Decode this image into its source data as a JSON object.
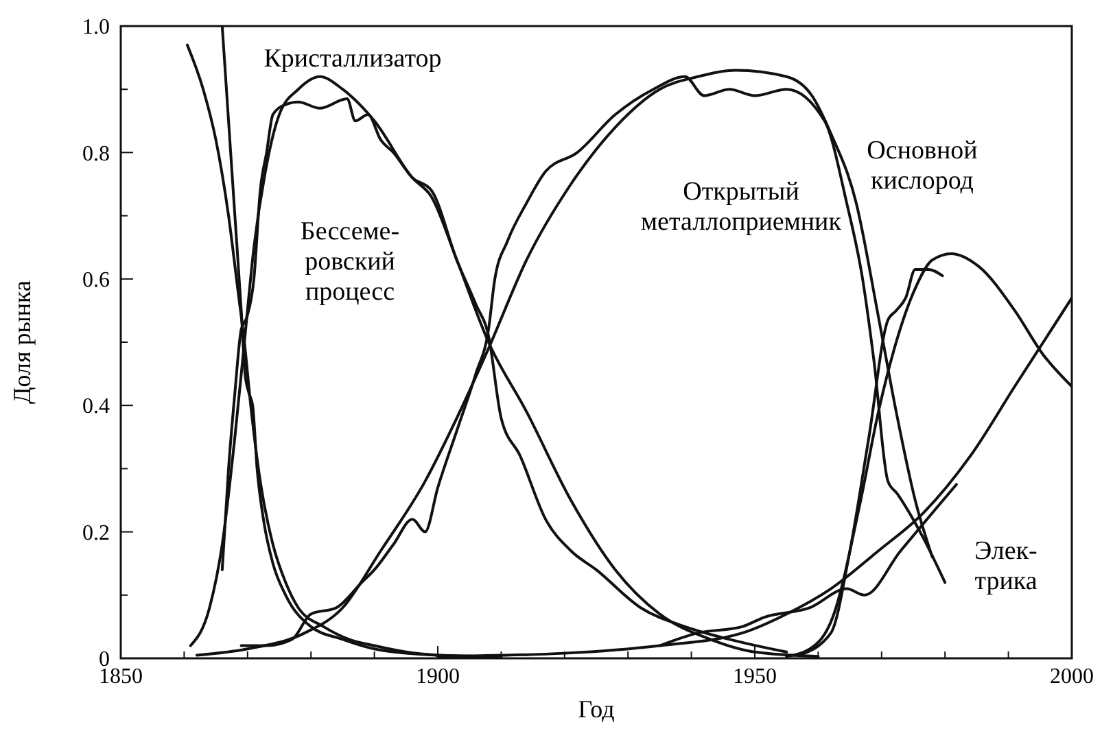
{
  "chart_data": {
    "type": "line",
    "xlabel": "Год",
    "ylabel": "Доля рынка",
    "xlim": [
      1850,
      2000
    ],
    "xticks": [
      1850,
      {
        "value": 1860,
        "label": null
      },
      {
        "value": 1870,
        "label": null
      },
      {
        "value": 1880,
        "label": null
      },
      {
        "value": 1890,
        "label": null
      },
      1900,
      {
        "value": 1910,
        "label": null
      },
      {
        "value": 1920,
        "label": null
      },
      {
        "value": 1930,
        "label": null
      },
      {
        "value": 1940,
        "label": null
      },
      1950,
      {
        "value": 1960,
        "label": null
      },
      {
        "value": 1970,
        "label": null
      },
      {
        "value": 1980,
        "label": null
      },
      {
        "value": 1990,
        "label": null
      },
      2000
    ],
    "ylim": [
      0,
      1
    ],
    "yticks": [
      0,
      {
        "value": 0.1,
        "label": null
      },
      0.2,
      {
        "value": 0.3,
        "label": null
      },
      0.4,
      {
        "value": 0.5,
        "label": null
      },
      0.6,
      {
        "value": 0.7,
        "label": null
      },
      0.8,
      {
        "value": 0.9,
        "label": null
      },
      {
        "value": 1,
        "label": "1.0"
      }
    ],
    "grid": false,
    "marker": "none",
    "line_style": "solid",
    "series": [
      {
        "color": "#111111",
        "x": [
          1866,
          1867,
          1868,
          1869,
          1869.6,
          1870.2,
          1870.8,
          1871.5,
          1872.5,
          1874,
          1876,
          1880,
          1885,
          1890,
          1900,
          1910
        ],
        "values": [
          1.0,
          0.85,
          0.7,
          0.55,
          0.45,
          0.42,
          0.4,
          0.3,
          0.22,
          0.15,
          0.1,
          0.05,
          0.03,
          0.015,
          0.005,
          0.003
        ]
      },
      {
        "color": "#111111",
        "x": [
          1860.5,
          1863,
          1865,
          1867,
          1868.5,
          1869.5,
          1870.5,
          1872,
          1874,
          1876,
          1878,
          1882,
          1886,
          1890,
          1895,
          1900,
          1910
        ],
        "values": [
          0.97,
          0.9,
          0.82,
          0.7,
          0.58,
          0.5,
          0.4,
          0.28,
          0.18,
          0.12,
          0.08,
          0.05,
          0.03,
          0.02,
          0.01,
          0.005,
          0.002
        ]
      },
      {
        "color": "#111111",
        "x": [
          1861,
          1864,
          1866,
          1868,
          1869.5,
          1871,
          1873,
          1875,
          1878,
          1881.4,
          1885,
          1890,
          1896,
          1899,
          1903,
          1908,
          1914,
          1921,
          1928,
          1935,
          1943,
          1950,
          1960
        ],
        "values": [
          0.02,
          0.08,
          0.18,
          0.35,
          0.5,
          0.65,
          0.78,
          0.86,
          0.9,
          0.92,
          0.9,
          0.85,
          0.76,
          0.73,
          0.63,
          0.5,
          0.39,
          0.25,
          0.14,
          0.07,
          0.03,
          0.01,
          0.003
        ]
      },
      {
        "color": "#111111",
        "x": [
          1866,
          1867,
          1868,
          1869,
          1869.9,
          1871,
          1872,
          1873,
          1874,
          1875.8,
          1878,
          1881.4,
          1885.7,
          1887,
          1889,
          1891,
          1893,
          1896,
          1899,
          1903,
          1906,
          1908,
          1910,
          1913,
          1917,
          1921,
          1925,
          1932,
          1939,
          1946,
          1955
        ],
        "values": [
          0.14,
          0.3,
          0.42,
          0.52,
          0.54,
          0.6,
          0.74,
          0.8,
          0.86,
          0.875,
          0.88,
          0.87,
          0.885,
          0.85,
          0.86,
          0.82,
          0.8,
          0.76,
          0.74,
          0.63,
          0.56,
          0.51,
          0.38,
          0.32,
          0.22,
          0.17,
          0.14,
          0.08,
          0.05,
          0.03,
          0.01
        ]
      },
      {
        "color": "#111111",
        "x": [
          1862,
          1870,
          1879,
          1885,
          1891,
          1898,
          1903,
          1908,
          1914,
          1921,
          1928,
          1935,
          1941,
          1947,
          1955,
          1959,
          1962,
          1966,
          1969.5,
          1972.3,
          1975.3,
          1978
        ],
        "values": [
          0.005,
          0.015,
          0.04,
          0.08,
          0.17,
          0.28,
          0.38,
          0.49,
          0.63,
          0.75,
          0.84,
          0.9,
          0.92,
          0.93,
          0.92,
          0.89,
          0.83,
          0.72,
          0.54,
          0.39,
          0.25,
          0.16
        ]
      },
      {
        "color": "#111111",
        "x": [
          1869,
          1873,
          1877,
          1880,
          1884,
          1888,
          1890,
          1893,
          1896,
          1898,
          1900,
          1903,
          1906,
          1908,
          1909,
          1911,
          1914,
          1917,
          1922,
          1928,
          1934,
          1939,
          1942,
          1946,
          1950,
          1955,
          1961,
          1964.5,
          1967,
          1968.8,
          1971,
          1972.5,
          1976.6,
          1980
        ],
        "values": [
          0.02,
          0.02,
          0.03,
          0.07,
          0.08,
          0.12,
          0.14,
          0.18,
          0.22,
          0.2,
          0.27,
          0.36,
          0.45,
          0.52,
          0.6,
          0.66,
          0.72,
          0.77,
          0.8,
          0.86,
          0.9,
          0.92,
          0.89,
          0.9,
          0.89,
          0.9,
          0.85,
          0.72,
          0.6,
          0.47,
          0.28,
          0.26,
          0.19,
          0.12
        ]
      },
      {
        "color": "#111111",
        "x": [
          1955,
          1958.7,
          1962.3,
          1966.6,
          1969.5,
          1972.3,
          1975.3,
          1978,
          1981,
          1985.3,
          1991,
          1995.5,
          2000
        ],
        "values": [
          0.003,
          0.015,
          0.065,
          0.245,
          0.39,
          0.5,
          0.585,
          0.63,
          0.64,
          0.62,
          0.55,
          0.48,
          0.43
        ]
      },
      {
        "color": "#111111",
        "x": [
          1957,
          1962,
          1965,
          1968,
          1971,
          1972.3,
          1973.8,
          1975.3,
          1977.4,
          1979.6
        ],
        "values": [
          0.005,
          0.04,
          0.17,
          0.35,
          0.535,
          0.55,
          0.57,
          0.615,
          0.615,
          0.605
        ]
      },
      {
        "color": "#111111",
        "x": [
          1900,
          1920,
          1935,
          1948,
          1955,
          1962,
          1969.5,
          1976.6,
          1984,
          1991,
          2000
        ],
        "values": [
          0.003,
          0.008,
          0.02,
          0.04,
          0.07,
          0.11,
          0.17,
          0.23,
          0.32,
          0.43,
          0.57
        ]
      },
      {
        "color": "#111111",
        "x": [
          1935,
          1941,
          1948,
          1951.5,
          1958.7,
          1964.5,
          1967.3,
          1973,
          1978,
          1981.8
        ],
        "values": [
          0.02,
          0.04,
          0.05,
          0.065,
          0.08,
          0.11,
          0.1,
          0.17,
          0.23,
          0.275
        ]
      }
    ],
    "annotations": [
      "Кристаллизатор",
      "Бессеме-\nровский\nпроцесс",
      "Открытый\nметаллоприемник",
      "Основной\nкислород",
      "Элек-\nтрика"
    ]
  }
}
